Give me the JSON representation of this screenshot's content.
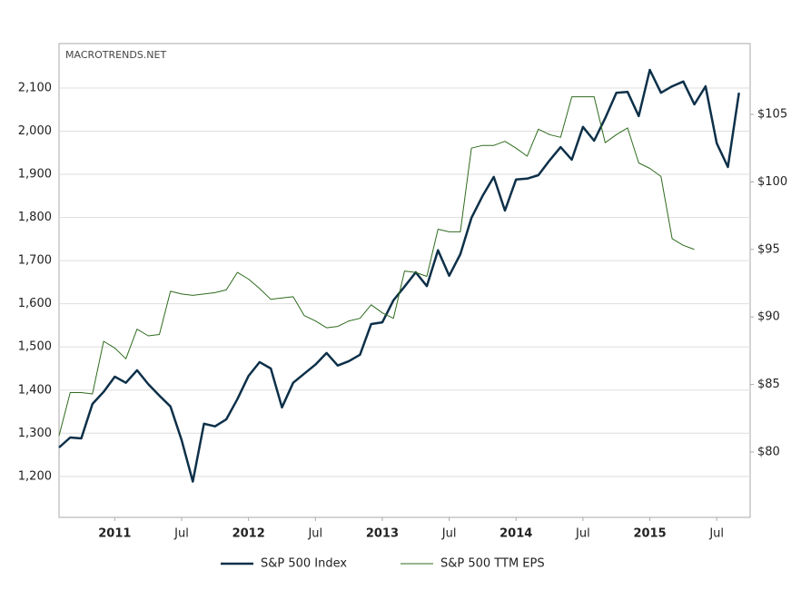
{
  "chart_data": {
    "type": "line",
    "watermark": "MACROTRENDS.NET",
    "x": [
      "2010-08",
      "2010-09",
      "2010-10",
      "2010-11",
      "2010-12",
      "2011-01",
      "2011-02",
      "2011-03",
      "2011-04",
      "2011-05",
      "2011-06",
      "2011-07",
      "2011-08",
      "2011-09",
      "2011-10",
      "2011-11",
      "2011-12",
      "2012-01",
      "2012-02",
      "2012-03",
      "2012-04",
      "2012-05",
      "2012-06",
      "2012-07",
      "2012-08",
      "2012-09",
      "2012-10",
      "2012-11",
      "2012-12",
      "2013-01",
      "2013-02",
      "2013-03",
      "2013-04",
      "2013-05",
      "2013-06",
      "2013-07",
      "2013-08",
      "2013-09",
      "2013-10",
      "2013-11",
      "2013-12",
      "2014-01",
      "2014-02",
      "2014-03",
      "2014-04",
      "2014-05",
      "2014-06",
      "2014-07",
      "2014-08",
      "2014-09",
      "2014-10",
      "2014-11",
      "2014-12",
      "2015-01",
      "2015-02",
      "2015-03",
      "2015-04",
      "2015-05",
      "2015-06",
      "2015-07",
      "2015-08",
      "2015-09"
    ],
    "series": [
      {
        "name": "S&P 500 Index",
        "color": "#0d3049",
        "axis": "y",
        "values": [
          1267,
          1290,
          1288,
          1368,
          1396,
          1431,
          1417,
          1446,
          1414,
          1387,
          1362,
          1284,
          1188,
          1322,
          1316,
          1332,
          1379,
          1433,
          1465,
          1450,
          1360,
          1417,
          1438,
          1459,
          1486,
          1457,
          1467,
          1482,
          1553,
          1557,
          1608,
          1640,
          1673,
          1641,
          1724,
          1665,
          1715,
          1799,
          1850,
          1894,
          1816,
          1888,
          1890,
          1898,
          1932,
          1963,
          1934,
          2010,
          1978,
          2030,
          2089,
          2091,
          2035,
          2142,
          2089,
          2104,
          2115,
          2062,
          2104,
          1972,
          1917,
          2089
        ]
      },
      {
        "name": "S&P 500 TTM EPS",
        "color": "#2e6b1e",
        "axis": "y2",
        "values": [
          81.2,
          84.4,
          84.4,
          84.3,
          88.2,
          87.7,
          86.9,
          89.1,
          88.6,
          88.7,
          91.9,
          91.7,
          91.6,
          91.7,
          91.8,
          92.0,
          93.3,
          92.8,
          92.1,
          91.3,
          91.4,
          91.5,
          90.1,
          89.7,
          89.2,
          89.3,
          89.7,
          89.9,
          90.9,
          90.3,
          89.9,
          93.4,
          93.3,
          93.0,
          96.5,
          96.3,
          96.3,
          102.5,
          102.7,
          102.7,
          103.0,
          102.5,
          101.9,
          103.9,
          103.5,
          103.3,
          106.3,
          106.3,
          106.3,
          102.9,
          103.5,
          104.0,
          101.4,
          101.0,
          100.4,
          95.8,
          95.3,
          95.0,
          null,
          null,
          null,
          null
        ]
      }
    ],
    "xlim": [
      "2010-08",
      "2015-10"
    ],
    "xticks": [
      {
        "value": "2011-01",
        "label": "2011"
      },
      {
        "value": "2011-07",
        "label": "Jul"
      },
      {
        "value": "2012-01",
        "label": "2012"
      },
      {
        "value": "2012-07",
        "label": "Jul"
      },
      {
        "value": "2013-01",
        "label": "2013"
      },
      {
        "value": "2013-07",
        "label": "Jul"
      },
      {
        "value": "2014-01",
        "label": "2014"
      },
      {
        "value": "2014-07",
        "label": "Jul"
      },
      {
        "value": "2015-01",
        "label": "2015"
      },
      {
        "value": "2015-07",
        "label": "Jul"
      }
    ],
    "ylim": [
      1105,
      2203
    ],
    "yticks": [
      {
        "value": 1200,
        "label": "1,200"
      },
      {
        "value": 1300,
        "label": "1,300"
      },
      {
        "value": 1400,
        "label": "1,400"
      },
      {
        "value": 1500,
        "label": "1,500"
      },
      {
        "value": 1600,
        "label": "1,600"
      },
      {
        "value": 1700,
        "label": "1,700"
      },
      {
        "value": 1800,
        "label": "1,800"
      },
      {
        "value": 1900,
        "label": "1,900"
      },
      {
        "value": 2000,
        "label": "2,000"
      },
      {
        "value": 2100,
        "label": "2,100"
      }
    ],
    "y2lim": [
      75.16,
      110.24
    ],
    "y2ticks": [
      {
        "value": 80,
        "label": "$80"
      },
      {
        "value": 85,
        "label": "$85"
      },
      {
        "value": 90,
        "label": "$90"
      },
      {
        "value": 95,
        "label": "$95"
      },
      {
        "value": 100,
        "label": "$100"
      },
      {
        "value": 105,
        "label": "$105"
      }
    ],
    "grid": true,
    "legend": "bottom"
  }
}
